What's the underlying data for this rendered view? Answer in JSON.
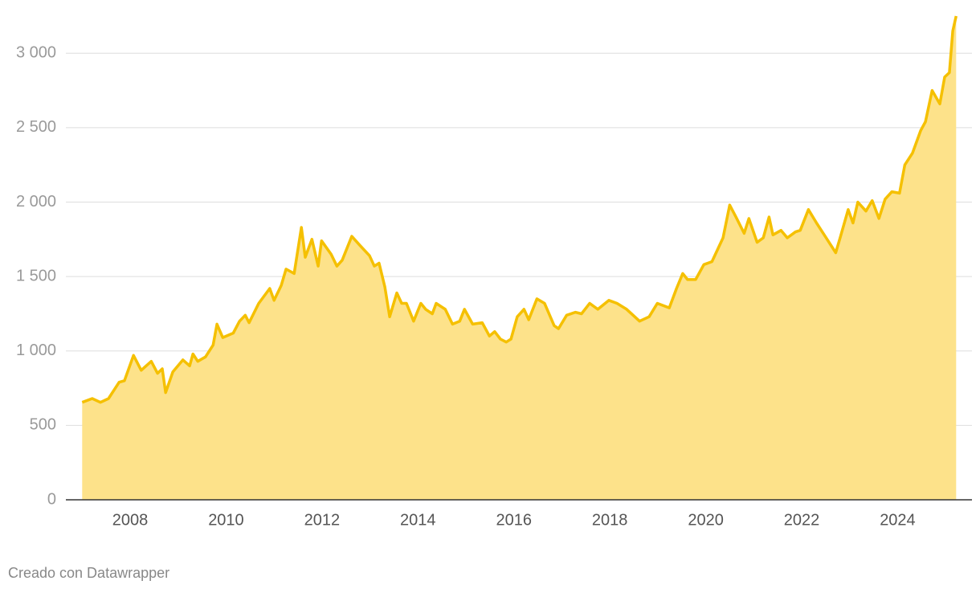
{
  "chart_data": {
    "type": "area",
    "x": [
      2007.0,
      2007.21,
      2007.38,
      2007.55,
      2007.77,
      2007.88,
      2008.07,
      2008.23,
      2008.44,
      2008.57,
      2008.67,
      2008.74,
      2008.89,
      2009.1,
      2009.24,
      2009.31,
      2009.41,
      2009.57,
      2009.73,
      2009.81,
      2009.93,
      2010.15,
      2010.28,
      2010.4,
      2010.48,
      2010.68,
      2010.91,
      2011.0,
      2011.15,
      2011.25,
      2011.42,
      2011.57,
      2011.65,
      2011.79,
      2011.92,
      2011.99,
      2012.19,
      2012.31,
      2012.42,
      2012.62,
      2012.79,
      2012.99,
      2013.09,
      2013.19,
      2013.31,
      2013.41,
      2013.56,
      2013.66,
      2013.76,
      2013.91,
      2014.06,
      2014.16,
      2014.3,
      2014.38,
      2014.57,
      2014.72,
      2014.87,
      2014.97,
      2015.14,
      2015.34,
      2015.49,
      2015.6,
      2015.72,
      2015.84,
      2015.94,
      2016.07,
      2016.21,
      2016.31,
      2016.48,
      2016.64,
      2016.84,
      2016.93,
      2017.1,
      2017.28,
      2017.41,
      2017.58,
      2017.75,
      2017.98,
      2018.15,
      2018.35,
      2018.62,
      2018.82,
      2018.99,
      2019.24,
      2019.39,
      2019.52,
      2019.62,
      2019.79,
      2019.96,
      2020.13,
      2020.36,
      2020.5,
      2020.63,
      2020.8,
      2020.9,
      2021.07,
      2021.2,
      2021.32,
      2021.4,
      2021.57,
      2021.7,
      2021.87,
      2021.97,
      2022.14,
      2022.31,
      2022.47,
      2022.71,
      2022.81,
      2022.97,
      2023.07,
      2023.17,
      2023.34,
      2023.47,
      2023.61,
      2023.74,
      2023.88,
      2024.04,
      2024.15,
      2024.31,
      2024.48,
      2024.58,
      2024.72,
      2024.88,
      2024.98,
      2025.08,
      2025.15,
      2025.22
    ],
    "values": [
      655,
      680,
      655,
      680,
      790,
      800,
      970,
      870,
      930,
      850,
      880,
      720,
      860,
      940,
      900,
      980,
      930,
      960,
      1040,
      1180,
      1090,
      1120,
      1200,
      1240,
      1190,
      1320,
      1420,
      1340,
      1440,
      1550,
      1520,
      1830,
      1630,
      1750,
      1570,
      1740,
      1650,
      1570,
      1610,
      1770,
      1710,
      1640,
      1570,
      1590,
      1430,
      1230,
      1390,
      1320,
      1320,
      1200,
      1320,
      1280,
      1250,
      1320,
      1280,
      1180,
      1200,
      1280,
      1180,
      1190,
      1100,
      1130,
      1080,
      1060,
      1080,
      1230,
      1280,
      1210,
      1350,
      1320,
      1170,
      1150,
      1240,
      1260,
      1250,
      1320,
      1280,
      1340,
      1320,
      1280,
      1200,
      1230,
      1320,
      1290,
      1420,
      1520,
      1480,
      1480,
      1580,
      1600,
      1760,
      1980,
      1900,
      1790,
      1890,
      1730,
      1760,
      1900,
      1780,
      1810,
      1760,
      1800,
      1810,
      1950,
      1860,
      1780,
      1660,
      1770,
      1950,
      1860,
      2000,
      1940,
      2010,
      1890,
      2020,
      2070,
      2060,
      2250,
      2330,
      2480,
      2540,
      2750,
      2660,
      2840,
      2870,
      3150,
      3250
    ],
    "color": "#f5c000",
    "fill": "#fde28a",
    "xlim": [
      2006.66,
      2025.55
    ],
    "ylim": [
      0,
      3250
    ],
    "xticks": [
      2008,
      2010,
      2012,
      2014,
      2016,
      2018,
      2020,
      2022,
      2024
    ],
    "yticks": [
      0,
      500,
      {
        "value": 1000,
        "label": "1 000"
      },
      {
        "value": 1500,
        "label": "1 500"
      },
      {
        "value": 2000,
        "label": "2 000"
      },
      {
        "value": 2500,
        "label": "2 500"
      },
      {
        "value": 3000,
        "label": "3 000"
      }
    ],
    "grid": true,
    "footer": "Creado con Datawrapper"
  }
}
